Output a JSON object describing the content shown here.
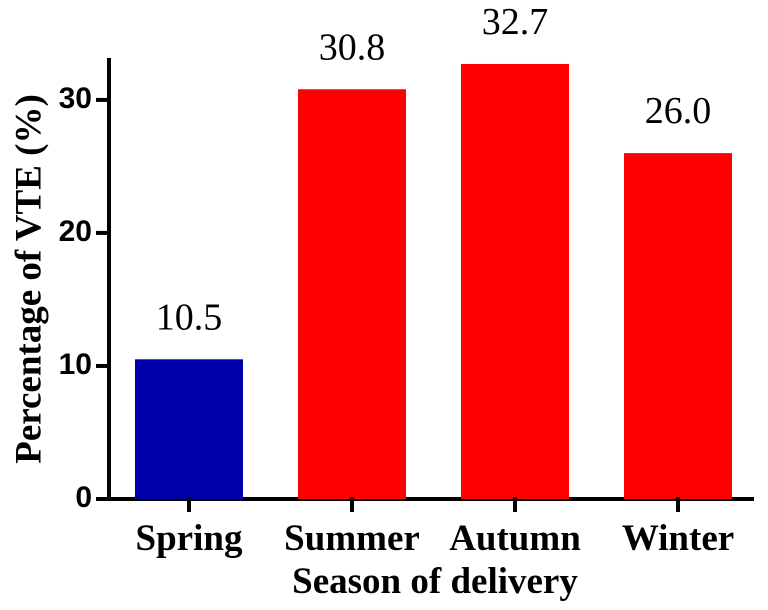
{
  "chart_data": {
    "type": "bar",
    "title": "",
    "xlabel": "Season of delivery",
    "ylabel": "Percentage of VTE (%)",
    "categories": [
      "Spring",
      "Summer",
      "Autumn",
      "Winter"
    ],
    "values": [
      10.5,
      30.8,
      32.7,
      26.0
    ],
    "data_labels": [
      "10.5",
      "30.8",
      "32.7",
      "26.0"
    ],
    "bar_colors": [
      "#0000aa",
      "#ff0000",
      "#ff0000",
      "#ff0000"
    ],
    "ylim": [
      0,
      33
    ],
    "y_ticks": [
      0,
      10,
      20,
      30
    ],
    "y_tick_labels": [
      "0",
      "10",
      "20",
      "30"
    ],
    "grid": false,
    "legend": "none"
  }
}
